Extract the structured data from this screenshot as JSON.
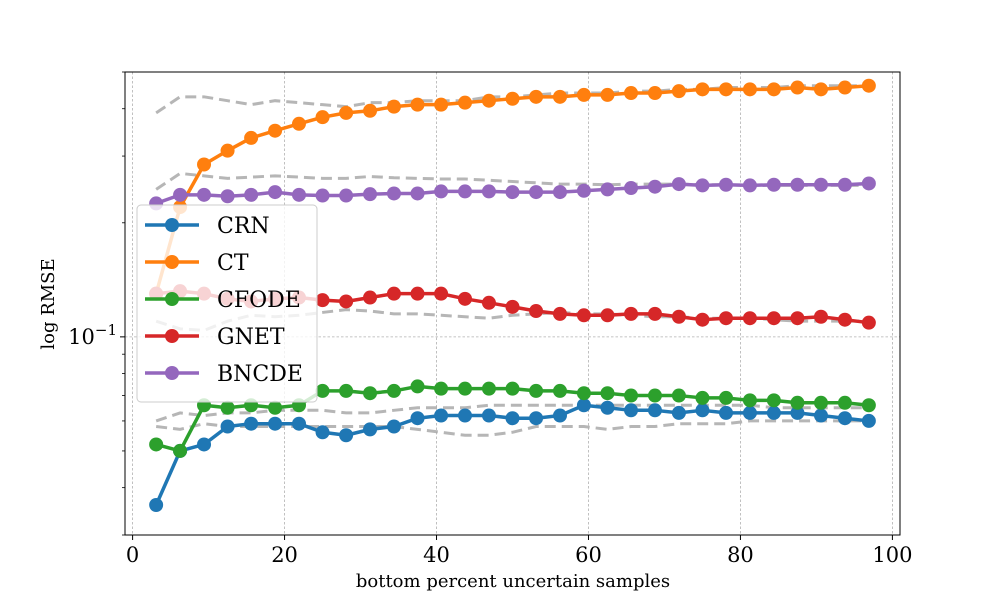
{
  "chart_data": {
    "type": "line",
    "title": "",
    "xlabel": "bottom percent uncertain samples",
    "ylabel": "log RMSE",
    "yscale": "log",
    "xlim": [
      -1,
      101
    ],
    "ylim": [
      0.03,
      0.5
    ],
    "grid": true,
    "legend_position": "center-left",
    "x_ticks": [
      0,
      20,
      40,
      60,
      80,
      100
    ],
    "x_tick_labels": [
      "0",
      "20",
      "40",
      "60",
      "80",
      "100"
    ],
    "y_major_tick_label": {
      "value": 0.1,
      "base": "10",
      "exponent": "−1"
    },
    "x": [
      3.1,
      6.25,
      9.4,
      12.5,
      15.6,
      18.75,
      21.9,
      25,
      28.1,
      31.25,
      34.4,
      37.5,
      40.6,
      43.75,
      46.9,
      50,
      53.1,
      56.25,
      59.4,
      62.5,
      65.6,
      68.75,
      71.9,
      75,
      78.1,
      81.25,
      84.4,
      87.5,
      90.6,
      93.75,
      96.9
    ],
    "series": [
      {
        "name": "CRN",
        "color": "#1f77b4",
        "values": [
          0.036,
          0.05,
          0.052,
          0.058,
          0.059,
          0.059,
          0.059,
          0.056,
          0.055,
          0.057,
          0.058,
          0.061,
          0.062,
          0.062,
          0.062,
          0.061,
          0.061,
          0.062,
          0.066,
          0.065,
          0.064,
          0.064,
          0.063,
          0.064,
          0.063,
          0.063,
          0.063,
          0.063,
          0.062,
          0.061,
          0.06
        ]
      },
      {
        "name": "CT",
        "color": "#ff7f0e",
        "values": [
          0.13,
          0.22,
          0.285,
          0.31,
          0.335,
          0.35,
          0.365,
          0.38,
          0.39,
          0.395,
          0.405,
          0.41,
          0.41,
          0.415,
          0.42,
          0.425,
          0.43,
          0.43,
          0.435,
          0.435,
          0.44,
          0.44,
          0.445,
          0.45,
          0.45,
          0.45,
          0.45,
          0.455,
          0.45,
          0.455,
          0.46
        ]
      },
      {
        "name": "CFODE",
        "color": "#2ca02c",
        "values": [
          0.052,
          0.05,
          0.066,
          0.065,
          0.066,
          0.065,
          0.066,
          0.072,
          0.072,
          0.071,
          0.072,
          0.074,
          0.073,
          0.073,
          0.073,
          0.073,
          0.072,
          0.072,
          0.071,
          0.071,
          0.07,
          0.07,
          0.07,
          0.069,
          0.069,
          0.068,
          0.068,
          0.067,
          0.067,
          0.067,
          0.066
        ]
      },
      {
        "name": "GNET",
        "color": "#d62728",
        "values": [
          0.13,
          0.132,
          0.13,
          0.126,
          0.124,
          0.126,
          0.127,
          0.125,
          0.124,
          0.127,
          0.13,
          0.13,
          0.13,
          0.126,
          0.123,
          0.12,
          0.117,
          0.115,
          0.114,
          0.114,
          0.115,
          0.115,
          0.113,
          0.111,
          0.112,
          0.112,
          0.112,
          0.112,
          0.113,
          0.111,
          0.109
        ]
      },
      {
        "name": "BNCDE",
        "color": "#9467bd",
        "values": [
          0.225,
          0.237,
          0.237,
          0.235,
          0.237,
          0.241,
          0.237,
          0.236,
          0.236,
          0.238,
          0.239,
          0.239,
          0.242,
          0.242,
          0.242,
          0.241,
          0.241,
          0.241,
          0.243,
          0.245,
          0.247,
          0.249,
          0.253,
          0.251,
          0.252,
          0.251,
          0.252,
          0.252,
          0.252,
          0.252,
          0.254
        ]
      }
    ],
    "bands": [
      {
        "name": "CT-upper",
        "values": [
          0.39,
          0.43,
          0.43,
          0.42,
          0.41,
          0.42,
          0.415,
          0.41,
          0.405,
          0.415,
          0.415,
          0.42,
          0.42,
          0.42,
          0.43,
          0.43,
          0.435,
          0.44,
          0.44,
          0.44,
          0.445,
          0.445,
          0.45,
          0.45,
          0.455,
          0.455,
          0.455,
          0.46,
          0.46,
          0.46,
          0.46
        ]
      },
      {
        "name": "BNCDE-upper",
        "values": [
          0.245,
          0.27,
          0.266,
          0.262,
          0.264,
          0.266,
          0.264,
          0.262,
          0.262,
          0.265,
          0.263,
          0.262,
          0.261,
          0.261,
          0.259,
          0.257,
          0.255,
          0.253,
          0.253,
          0.252,
          0.253,
          0.253,
          0.253,
          0.252,
          0.252,
          0.251,
          0.251,
          0.251,
          0.251,
          0.251,
          0.251
        ]
      },
      {
        "name": "GNET-lower",
        "values": [
          0.11,
          0.105,
          0.104,
          0.11,
          0.114,
          0.113,
          0.114,
          0.116,
          0.118,
          0.117,
          0.115,
          0.115,
          0.114,
          0.113,
          0.112,
          0.114,
          0.115,
          0.116,
          0.115,
          0.115,
          0.114,
          0.113,
          0.113,
          0.112,
          0.112,
          0.112,
          0.111,
          0.11,
          0.11,
          0.11,
          0.11
        ]
      },
      {
        "name": "CFODE-upper",
        "values": [
          0.06,
          0.063,
          0.062,
          0.063,
          0.063,
          0.064,
          0.064,
          0.064,
          0.063,
          0.063,
          0.064,
          0.065,
          0.065,
          0.065,
          0.066,
          0.066,
          0.066,
          0.066,
          0.066,
          0.066,
          0.066,
          0.066,
          0.066,
          0.066,
          0.066,
          0.066,
          0.065,
          0.065,
          0.065,
          0.065,
          0.065
        ]
      },
      {
        "name": "CRN-lower",
        "values": [
          0.058,
          0.057,
          0.059,
          0.058,
          0.058,
          0.058,
          0.058,
          0.058,
          0.058,
          0.058,
          0.058,
          0.057,
          0.056,
          0.055,
          0.055,
          0.056,
          0.058,
          0.058,
          0.058,
          0.057,
          0.058,
          0.058,
          0.059,
          0.059,
          0.059,
          0.06,
          0.06,
          0.06,
          0.06,
          0.06,
          0.06
        ]
      }
    ]
  },
  "colors": {
    "band": "#a9a9a9",
    "grid": "#b0b0b0",
    "axis": "#000000",
    "legend_border": "#cccccc"
  }
}
